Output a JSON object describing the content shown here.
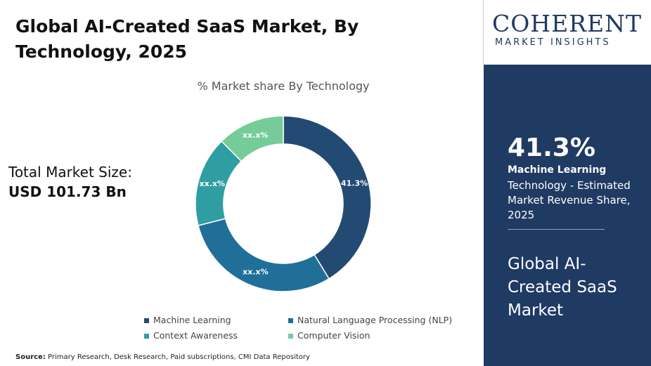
{
  "chart_data": {
    "type": "donut",
    "title": "Global AI-Created SaaS Market, By Technology, 2025",
    "subtitle": "% Market share By Technology",
    "categories": [
      "Machine Learning",
      "Natural Language Processing (NLP)",
      "Context Awareness",
      "Computer Vision"
    ],
    "values": [
      41.3,
      29.7,
      16.6,
      12.4
    ],
    "value_labels": [
      "41.3%",
      "xx.x%",
      "xx.x%",
      "xx.x%"
    ],
    "colors": [
      "#234a72",
      "#1f6f99",
      "#2f9ea3",
      "#75cc98"
    ]
  },
  "market_size": {
    "label": "Total Market Size:",
    "value": "USD 101.73 Bn"
  },
  "source": {
    "label": "Source:",
    "text": "Primary Research, Desk Research, Paid subscriptions, CMI Data Repository"
  },
  "logo": {
    "name": "COHERENT",
    "tagline": "MARKET INSIGHTS"
  },
  "sidebar": {
    "highlight": "41.3%",
    "segment": "Machine Learning",
    "description": "Technology - Estimated Market Revenue Share, 2025",
    "market": "Global AI-Created SaaS Market"
  }
}
